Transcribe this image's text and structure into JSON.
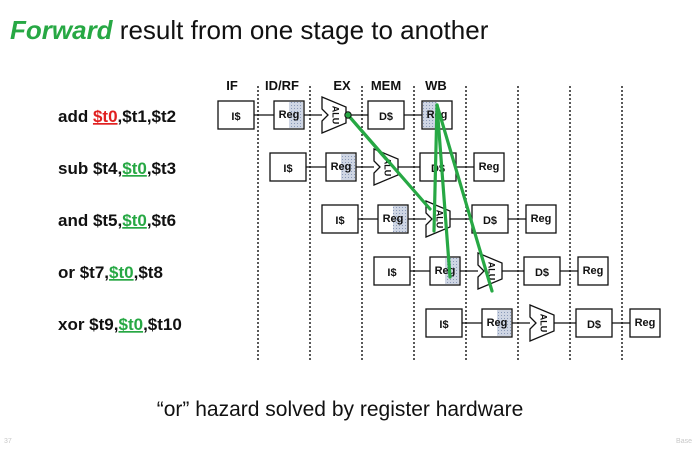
{
  "title": {
    "keyword": "Forward",
    "rest": " result from one stage to another"
  },
  "stages": [
    "IF",
    "ID/RF",
    "EX",
    "MEM",
    "WB"
  ],
  "unit_labels": {
    "imem": "I$",
    "reg": "Reg",
    "alu": "ALU",
    "dmem": "D$"
  },
  "instructions": [
    {
      "op": "add",
      "pre": " ",
      "reg": "$t0",
      "sep": ",",
      "post": "$t1,$t2",
      "reg_color": "#e02020",
      "role": "producer"
    },
    {
      "op": "sub",
      "pre": " $t4,",
      "reg": "$t0",
      "sep": ",",
      "post": "$t3",
      "reg_color": "#27a844",
      "role": "consumer"
    },
    {
      "op": "and",
      "pre": " $t5,",
      "reg": "$t0",
      "sep": ",",
      "post": "$t6",
      "reg_color": "#27a844",
      "role": "consumer"
    },
    {
      "op": "or",
      "pre": "   $t7,",
      "reg": "$t0",
      "sep": ",",
      "post": "$t8",
      "reg_color": "#27a844",
      "role": "consumer"
    },
    {
      "op": "xor",
      "pre": " $t9,",
      "reg": "$t0",
      "sep": ",",
      "post": "$t10",
      "reg_color": "#27a844",
      "role": "consumer"
    }
  ],
  "forward_color": "#27a844",
  "caption": "“or” hazard solved by register hardware",
  "page_number": "37",
  "footer": "Base"
}
